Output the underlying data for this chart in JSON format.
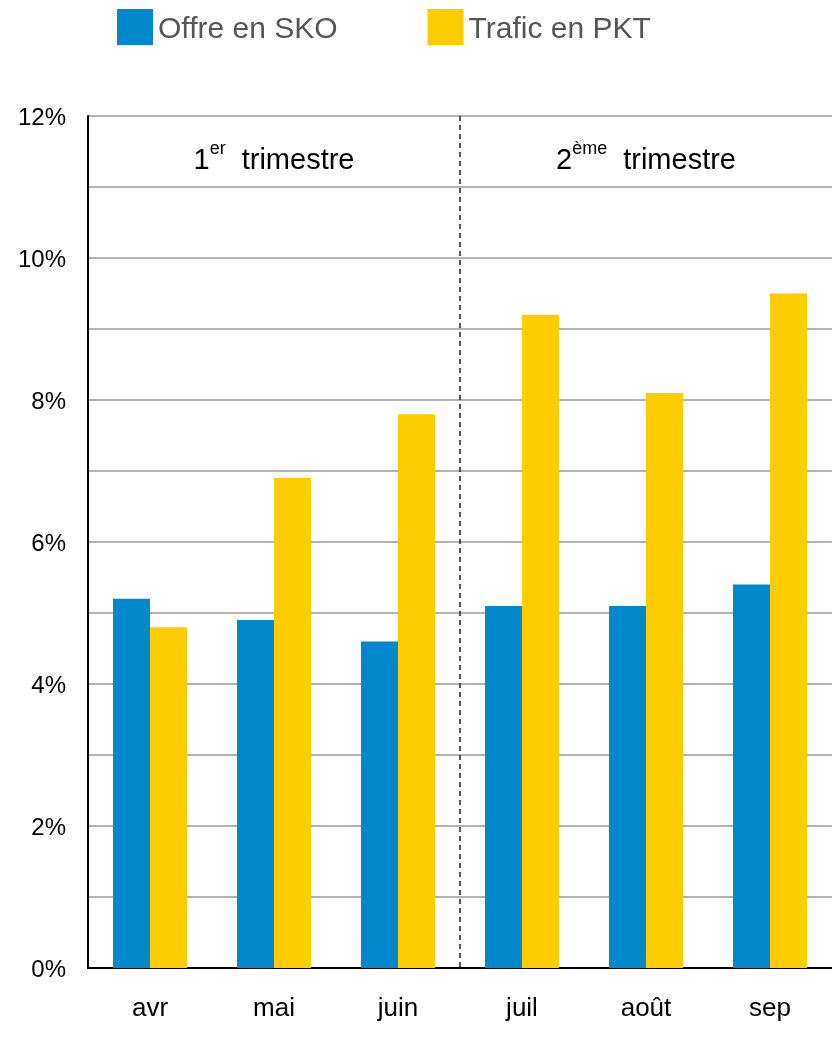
{
  "chart_data": {
    "type": "bar",
    "categories": [
      "avr",
      "mai",
      "juin",
      "juil",
      "août",
      "sep"
    ],
    "series": [
      {
        "name": "Offre en SKO",
        "color": "#0088cc",
        "values": [
          5.2,
          4.9,
          4.6,
          5.1,
          5.1,
          5.4
        ]
      },
      {
        "name": "Trafic en PKT",
        "color": "#ffcc00",
        "values": [
          4.8,
          6.9,
          7.8,
          9.2,
          8.1,
          9.5
        ]
      }
    ],
    "ylim": [
      0,
      12
    ],
    "yticks": [
      {
        "value": 0,
        "label": "0%"
      },
      {
        "value": 1,
        "label": null
      },
      {
        "value": 2,
        "label": "2%"
      },
      {
        "value": 3,
        "label": null
      },
      {
        "value": 4,
        "label": "4%"
      },
      {
        "value": 5,
        "label": null
      },
      {
        "value": 6,
        "label": "6%"
      },
      {
        "value": 7,
        "label": null
      },
      {
        "value": 8,
        "label": "8%"
      },
      {
        "value": 9,
        "label": null
      },
      {
        "value": 10,
        "label": "10%"
      },
      {
        "value": 11,
        "label": null
      },
      {
        "value": 12,
        "label": "12%"
      }
    ],
    "grid": true,
    "legend": "top",
    "ref_lines": [
      {
        "axis": "x",
        "value": "juil",
        "line_style": "dashed",
        "color": "#222222"
      }
    ],
    "annotations": [
      "1$^{er}$ trimestre",
      "2$^{ème}$ trimestre"
    ]
  }
}
